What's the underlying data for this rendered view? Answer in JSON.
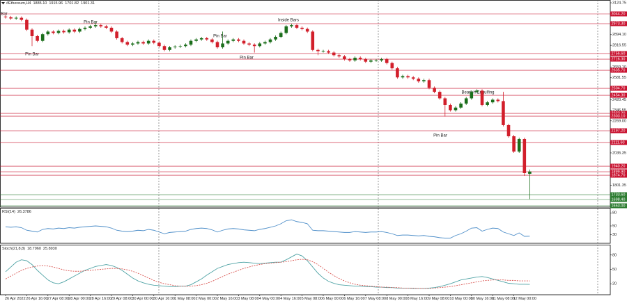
{
  "chart_data": [
    {
      "type": "candlestick",
      "title": "#Ethereum,H4",
      "readouts": [
        {
          "value": 1885.1,
          "label": "1885.10"
        },
        {
          "value": 1915.96,
          "label": "1915.96"
        },
        {
          "value": 1701.82,
          "label": "1701.82"
        },
        {
          "value": 1901.31,
          "label": "1901.31"
        }
      ],
      "up_color": "#1b6e1b",
      "down_color": "#d21f2b",
      "categories": [
        "26 Apr 2022",
        null,
        null,
        null,
        "26 Apr 16:00",
        null,
        null,
        null,
        "27 Apr 08:00",
        null,
        null,
        null,
        "28 Apr 00:00",
        null,
        null,
        null,
        "28 Apr 16:00",
        null,
        null,
        null,
        "29 Apr 08:00",
        null,
        null,
        null,
        "30 Apr 00:00",
        null,
        null,
        null,
        "30 Apr 16:00",
        null,
        null,
        null,
        "1 May 08:00",
        null,
        null,
        null,
        "2 May 00:00",
        null,
        null,
        null,
        "2 May 16:00",
        null,
        null,
        null,
        "3 May 08:00",
        null,
        null,
        null,
        "4 May 00:00",
        null,
        null,
        null,
        "4 May 16:00",
        null,
        null,
        null,
        "5 May 08:00",
        null,
        null,
        null,
        "6 May 00:00",
        null,
        null,
        null,
        "6 May 16:00",
        null,
        null,
        null,
        "7 May 08:00",
        null,
        null,
        null,
        "8 May 00:00",
        null,
        null,
        null,
        "8 May 16:00",
        null,
        null,
        null,
        "9 May 08:00",
        null,
        null,
        null,
        "10 May 00:00",
        null,
        null,
        null,
        "10 May 16:00",
        null,
        null,
        null,
        "11 May 08:00",
        null,
        null,
        null,
        "12 May 00:00",
        null,
        null,
        null
      ],
      "open": [
        3025,
        3020,
        3011,
        3016,
        3001,
        2930,
        2883,
        2849,
        2897,
        2916,
        2906,
        2921,
        2911,
        2930,
        2916,
        2935,
        2944,
        2954,
        2963,
        2954,
        2944,
        2916,
        2868,
        2840,
        2821,
        2830,
        2840,
        2830,
        2849,
        2835,
        2811,
        2783,
        2802,
        2807,
        2811,
        2821,
        2849,
        2859,
        2868,
        2859,
        2840,
        2802,
        2830,
        2849,
        2859,
        2849,
        2830,
        2821,
        2811,
        2830,
        2840,
        2859,
        2878,
        2906,
        2954,
        2963,
        2944,
        2935,
        2916,
        2783,
        2774,
        2774,
        2764,
        2745,
        2736,
        2716,
        2707,
        2726,
        2716,
        2698,
        2707,
        2707,
        2716,
        2688,
        2650,
        2584,
        2593,
        2584,
        2574,
        2555,
        2564,
        2508,
        2479,
        2432,
        2384,
        2346,
        2365,
        2394,
        2432,
        2479,
        2488,
        2384,
        2403,
        2422,
        2412,
        2238,
        2157,
        2046,
        2137,
        1885.1
      ],
      "high": [
        3035,
        3030,
        3026,
        3026,
        3011,
        2940,
        2893,
        2907,
        2926,
        2926,
        2931,
        2931,
        2940,
        2940,
        2945,
        2954,
        2964,
        2992,
        2973,
        2964,
        2954,
        2926,
        2878,
        2850,
        2840,
        2850,
        2850,
        2859,
        2859,
        2845,
        2821,
        2812,
        2817,
        2821,
        2831,
        2859,
        2869,
        2878,
        2878,
        2869,
        2850,
        2916,
        2859,
        2869,
        2869,
        2859,
        2840,
        2831,
        2840,
        2850,
        2869,
        2888,
        2916,
        2964,
        2973,
        2973,
        2954,
        2945,
        2926,
        2793,
        2784,
        2784,
        2774,
        2755,
        2746,
        2726,
        2736,
        2736,
        2726,
        2717,
        2717,
        2726,
        2726,
        2698,
        2660,
        2603,
        2603,
        2594,
        2584,
        2574,
        2574,
        2518,
        2489,
        2442,
        2394,
        2375,
        2404,
        2442,
        2489,
        2498,
        2498,
        2413,
        2432,
        2432,
        2479,
        2248,
        2167,
        2147,
        2147,
        1915.96
      ],
      "low": [
        3010,
        3001,
        3001,
        2991,
        2920,
        2811,
        2839,
        2839,
        2887,
        2896,
        2896,
        2901,
        2901,
        2906,
        2906,
        2925,
        2934,
        2944,
        2944,
        2934,
        2906,
        2858,
        2830,
        2811,
        2811,
        2820,
        2820,
        2820,
        2825,
        2801,
        2773,
        2773,
        2792,
        2797,
        2801,
        2811,
        2839,
        2849,
        2849,
        2830,
        2792,
        2792,
        2820,
        2839,
        2839,
        2820,
        2811,
        2764,
        2801,
        2820,
        2830,
        2849,
        2868,
        2896,
        2944,
        2934,
        2925,
        2906,
        2773,
        2745,
        2764,
        2754,
        2735,
        2726,
        2706,
        2697,
        2697,
        2706,
        2688,
        2688,
        2697,
        2697,
        2678,
        2640,
        2574,
        2574,
        2574,
        2564,
        2545,
        2545,
        2498,
        2469,
        2422,
        2300,
        2336,
        2336,
        2355,
        2384,
        2422,
        2469,
        2374,
        2374,
        2393,
        2402,
        2228,
        2147,
        2036,
        2036,
        1870,
        1701.82
      ],
      "close": [
        3020,
        3011,
        3016,
        3001,
        2930,
        2883,
        2849,
        2897,
        2916,
        2906,
        2921,
        2911,
        2930,
        2916,
        2935,
        2944,
        2954,
        2963,
        2954,
        2944,
        2916,
        2868,
        2840,
        2821,
        2830,
        2840,
        2830,
        2849,
        2835,
        2811,
        2783,
        2802,
        2807,
        2811,
        2821,
        2849,
        2859,
        2868,
        2859,
        2840,
        2802,
        2830,
        2849,
        2859,
        2849,
        2830,
        2821,
        2811,
        2830,
        2840,
        2859,
        2878,
        2906,
        2954,
        2963,
        2944,
        2935,
        2916,
        2783,
        2774,
        2774,
        2764,
        2745,
        2736,
        2716,
        2707,
        2726,
        2716,
        2698,
        2707,
        2707,
        2716,
        2688,
        2650,
        2584,
        2593,
        2584,
        2574,
        2555,
        2564,
        2508,
        2479,
        2432,
        2384,
        2346,
        2365,
        2394,
        2432,
        2479,
        2488,
        2384,
        2403,
        2422,
        2412,
        2238,
        2157,
        2046,
        2137,
        1890,
        1901.31
      ],
      "ylim": [
        1643,
        3145
      ],
      "yticks": [
        3124.75,
        {
          "value": 2894.1,
          "label": "2894.10"
        },
        2816.55,
        {
          "value": 2659.1,
          "label": "2659.10"
        },
        2581.55,
        2420.45,
        2346.55,
        {
          "value": 2269,
          "label": "2269.00"
        },
        2036.35,
        1801.35
      ],
      "levels": [
        {
          "value": 3044.2,
          "label": "3044.20",
          "color": "#c8102e"
        },
        {
          "value": 2973.3,
          "label": "2973.30",
          "color": "#c8102e"
        },
        {
          "value": 2756.6,
          "label": "2756.60",
          "color": "#c8102e"
        },
        {
          "value": 2716.3,
          "label": "2716.30",
          "color": "#c8102e"
        },
        {
          "value": 2635.7,
          "label": "2635.70",
          "color": "#c8102e"
        },
        {
          "value": 2504.7,
          "label": "2504.70",
          "color": "#c8102e"
        },
        {
          "value": 2454.3,
          "label": "2454.30",
          "color": "#c8102e"
        },
        {
          "value": 2323.2,
          "label": "2323.20",
          "color": "#c8102e"
        },
        {
          "value": 2303.1,
          "label": "2303.10",
          "color": "#c8102e"
        },
        {
          "value": 2197.2,
          "label": "2197.20",
          "color": "#c8102e"
        },
        {
          "value": 2111.6,
          "label": "2111.60",
          "color": "#c8102e"
        },
        {
          "value": 1940.2,
          "label": "1940.20",
          "color": "#c8102e"
        },
        {
          "value": 1899.9,
          "label": "1899.90",
          "color": "#c8102e"
        },
        {
          "value": 1874.7,
          "label": "1874.70",
          "color": "#c8102e"
        },
        {
          "value": 1733.6,
          "label": "1733.60",
          "color": "#2e7d32"
        },
        {
          "value": 1698.4,
          "label": "1698.40",
          "color": "#2e7d32"
        },
        {
          "value": 1653,
          "label": "1653.00",
          "color": "#2e7d32"
        }
      ],
      "annotations": [
        "Bar",
        "Pin Bar",
        "Pin Bar",
        "Pin Bar",
        "Pin Bar",
        "Inside Bars",
        "Bearish Engulfing",
        "Pin Bar"
      ]
    },
    {
      "type": "line",
      "title": "RSI(14)",
      "ylim": [
        10,
        90
      ],
      "yticks": [
        80,
        50,
        30
      ],
      "series": [
        {
          "color": "#4f8fc9",
          "dash": false,
          "values": [
            48,
            47,
            48,
            46,
            40,
            38,
            36,
            42,
            44,
            43,
            45,
            44,
            46,
            45,
            47,
            48,
            49,
            50,
            49,
            48,
            45,
            40,
            38,
            37,
            38,
            40,
            39,
            42,
            40,
            36,
            32,
            35,
            36,
            37,
            38,
            42,
            44,
            45,
            44,
            41,
            36,
            40,
            43,
            44,
            43,
            41,
            40,
            39,
            42,
            44,
            47,
            50,
            55,
            62,
            64,
            60,
            58,
            55,
            40,
            39,
            39,
            38,
            37,
            36,
            35,
            35,
            37,
            36,
            35,
            36,
            36,
            37,
            35,
            32,
            28,
            29,
            29,
            28,
            27,
            28,
            26,
            25,
            23,
            22,
            22,
            28,
            32,
            38,
            45,
            46,
            38,
            42,
            45,
            44,
            36,
            32,
            28,
            34,
            26,
            26.3786
          ]
        }
      ]
    },
    {
      "type": "line",
      "title": "Stoch(21,8,8)",
      "ylim": [
        0,
        100
      ],
      "yticks": [
        80,
        50,
        20
      ],
      "readouts": [
        {
          "value": 18.796,
          "label": "18.7960"
        },
        {
          "value": 25.893,
          "label": "25.8930"
        }
      ],
      "series": [
        {
          "color": "#4fa3a5",
          "dash": false,
          "values": [
            45,
            55,
            65,
            70,
            68,
            60,
            48,
            38,
            28,
            22,
            20,
            24,
            30,
            36,
            42,
            48,
            52,
            56,
            58,
            60,
            58,
            54,
            48,
            40,
            32,
            26,
            22,
            19,
            17,
            16,
            15,
            14,
            14,
            15,
            15,
            18,
            24,
            30,
            38,
            45,
            52,
            56,
            60,
            62,
            64,
            65,
            64,
            63,
            62,
            63,
            64,
            65,
            65,
            70,
            76,
            82,
            78,
            68,
            55,
            42,
            32,
            25,
            21,
            18,
            17,
            16,
            15,
            15,
            14,
            14,
            13,
            13,
            12,
            12,
            11,
            11,
            11,
            10,
            10,
            10,
            11,
            12,
            14,
            17,
            20,
            24,
            28,
            30,
            32,
            34,
            35,
            33,
            30,
            27,
            24,
            21,
            20,
            19,
            19,
            18.796
          ]
        },
        {
          "color": "#d9534f",
          "dash": true,
          "values": [
            30,
            36,
            42,
            48,
            52,
            55,
            57,
            58,
            57,
            55,
            52,
            49,
            47,
            46,
            46,
            47,
            48,
            49,
            50,
            51,
            52,
            52,
            51,
            49,
            46,
            42,
            37,
            32,
            27,
            23,
            20,
            18,
            16,
            15,
            15,
            15,
            16,
            18,
            21,
            25,
            30,
            35,
            40,
            44,
            48,
            52,
            55,
            58,
            60,
            62,
            63,
            64,
            65,
            66,
            68,
            70,
            71,
            70,
            66,
            60,
            52,
            44,
            37,
            31,
            26,
            22,
            19,
            17,
            16,
            15,
            14,
            13,
            13,
            12,
            12,
            11,
            11,
            11,
            10,
            10,
            10,
            11,
            12,
            13,
            14,
            16,
            18,
            20,
            22,
            24,
            26,
            27,
            28,
            28,
            28,
            27,
            27,
            26,
            26,
            25.893
          ]
        }
      ]
    }
  ]
}
